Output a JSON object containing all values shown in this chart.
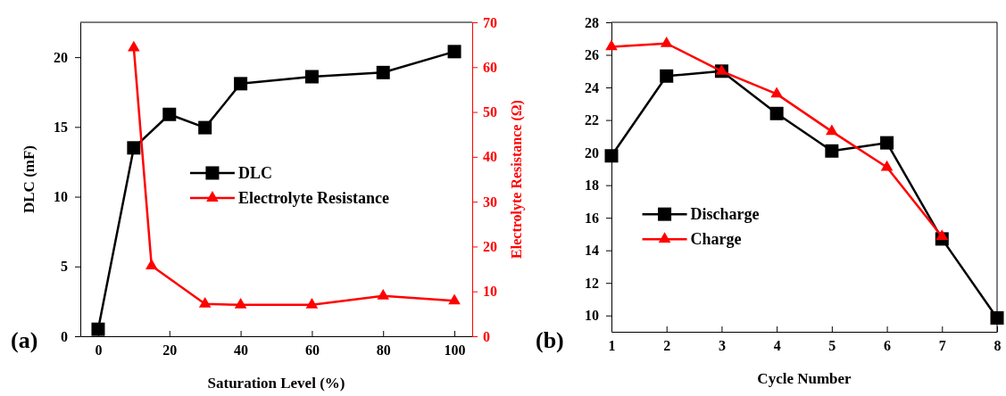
{
  "chart_data": [
    {
      "type": "line",
      "xlabel": "Saturation Level (%)",
      "ylabel": "DLC (mF)",
      "y2label": "Electrolyte Resistance  (Ω)",
      "annotations": [
        "(a)"
      ],
      "xlim": [
        -5,
        105
      ],
      "xticks": [
        0,
        20,
        40,
        60,
        80,
        100
      ],
      "ylim": [
        0,
        22.5
      ],
      "yticks": [
        0,
        5,
        10,
        15,
        20
      ],
      "y2lim": [
        0,
        70
      ],
      "y2ticks": [
        0,
        10,
        20,
        30,
        40,
        50,
        60,
        70
      ],
      "legend": "center",
      "grid": false,
      "series": [
        {
          "name": "DLC",
          "color": "#000000",
          "marker": "square",
          "x": [
            0,
            10,
            20,
            30,
            40,
            60,
            80,
            100
          ],
          "values": [
            0.5,
            13.5,
            15.9,
            14.95,
            18.1,
            18.6,
            18.9,
            20.4
          ]
        },
        {
          "name": "Electrolyte Resistance",
          "color": "#ff0000",
          "marker": "triangle",
          "axis": "y2",
          "x": [
            10,
            15,
            30,
            40,
            60,
            80,
            100
          ],
          "values": [
            64.3,
            15.7,
            7.2,
            7.0,
            7.0,
            9.0,
            7.9
          ]
        }
      ]
    },
    {
      "type": "line",
      "xlabel": "Cycle Number",
      "annotations": [
        "(b)"
      ],
      "xlim": [
        1,
        8
      ],
      "xticks": [
        1,
        2,
        3,
        4,
        5,
        6,
        7,
        8
      ],
      "ylim": [
        9,
        28
      ],
      "yticks": [
        10,
        12,
        14,
        16,
        18,
        20,
        22,
        24,
        26,
        28
      ],
      "legend": "bottom left",
      "grid": false,
      "series": [
        {
          "name": "Discharge",
          "color": "#000000",
          "marker": "square",
          "x": [
            1,
            2,
            3,
            4,
            5,
            6,
            7,
            8
          ],
          "values": [
            19.8,
            24.7,
            25.0,
            22.4,
            20.1,
            20.6,
            14.7,
            9.85
          ]
        },
        {
          "name": "Charge",
          "color": "#ff0000",
          "marker": "triangle",
          "x": [
            1,
            2,
            3,
            4,
            5,
            6,
            7
          ],
          "values": [
            26.5,
            26.7,
            25.0,
            23.6,
            21.3,
            19.1,
            14.85
          ]
        }
      ]
    }
  ]
}
